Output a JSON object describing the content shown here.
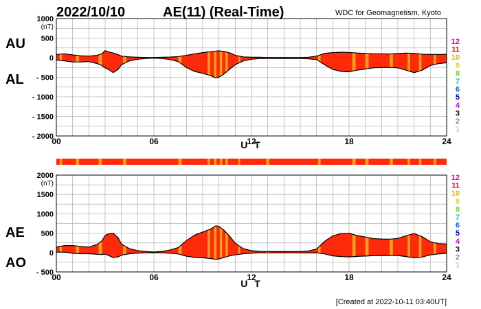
{
  "header": {
    "date": "2022/10/10",
    "title": "AE(11) (Real-Time)",
    "source": "WDC for Geomagnetism, Kyoto"
  },
  "footer": {
    "created": "[Created at 2022-10-11 03:40UT]"
  },
  "side_labels": {
    "top_upper": "AU",
    "top_lower": "AL",
    "bottom_upper": "AE",
    "bottom_lower": "AO"
  },
  "station_legend": {
    "labels": [
      "12",
      "11",
      "10",
      "9",
      "8",
      "7",
      "6",
      "5",
      "4",
      "3",
      "2",
      "1"
    ],
    "colors": [
      "#ff00aa",
      "#ff0000",
      "#ffaa00",
      "#dddd00",
      "#66dd00",
      "#00cccc",
      "#0055ff",
      "#0000cc",
      "#cc00cc",
      "#000000",
      "#888888",
      "#cccccc"
    ]
  },
  "colors": {
    "fill_main": "#ff2a0a",
    "fill_alt": "#ff9f1a",
    "outline": "#000000",
    "grid": "#b4b4b4"
  },
  "chart_data": [
    {
      "type": "area",
      "name": "AU / AL",
      "ylabel": "(nT)",
      "xlabel": "U T",
      "ylim": [
        -2000,
        1000
      ],
      "yticks": [
        1000,
        500,
        0,
        -500,
        -1000,
        -1500,
        -2000
      ],
      "ytick_labels": [
        "1000",
        "500",
        "0",
        "- 500",
        "- 1000",
        "- 1500",
        "- 2000"
      ],
      "xlim": [
        0,
        24
      ],
      "xticks": [
        0,
        6,
        12,
        18,
        24
      ],
      "xtick_labels": [
        "00",
        "06",
        "12",
        "18",
        "24"
      ],
      "x": [
        0,
        0.5,
        1,
        1.5,
        2,
        2.5,
        2.8,
        3,
        3.2,
        3.5,
        3.8,
        4,
        4.5,
        5,
        5.5,
        6,
        6.5,
        7,
        7.5,
        8,
        8.5,
        9,
        9.5,
        9.8,
        10,
        10.3,
        10.7,
        11,
        11.5,
        12,
        12.5,
        13,
        13.5,
        14,
        14.5,
        15,
        15.5,
        16,
        16.5,
        17,
        17.5,
        18,
        18.5,
        19,
        19.5,
        20,
        20.5,
        21,
        21.5,
        22,
        22.5,
        23,
        23.5,
        24
      ],
      "series": [
        {
          "name": "AU",
          "values": [
            80,
            100,
            70,
            50,
            40,
            60,
            100,
            180,
            150,
            120,
            80,
            40,
            20,
            10,
            5,
            5,
            10,
            15,
            30,
            60,
            100,
            130,
            150,
            170,
            175,
            160,
            120,
            60,
            20,
            10,
            10,
            5,
            5,
            5,
            5,
            5,
            10,
            40,
            110,
            130,
            140,
            135,
            120,
            110,
            100,
            100,
            95,
            105,
            115,
            110,
            90,
            80,
            80,
            90
          ]
        },
        {
          "name": "AL",
          "values": [
            -60,
            -80,
            -110,
            -110,
            -100,
            -150,
            -200,
            -260,
            -300,
            -380,
            -300,
            -180,
            -80,
            -40,
            -20,
            -10,
            -20,
            -50,
            -100,
            -250,
            -350,
            -400,
            -460,
            -520,
            -500,
            -420,
            -280,
            -180,
            -80,
            -40,
            -20,
            -20,
            -20,
            -20,
            -20,
            -20,
            -30,
            -50,
            -180,
            -300,
            -350,
            -360,
            -320,
            -290,
            -260,
            -250,
            -250,
            -260,
            -320,
            -380,
            -320,
            -200,
            -150,
            -130
          ]
        }
      ]
    },
    {
      "type": "area",
      "name": "AE / AO",
      "ylabel": "(nT)",
      "xlabel": "U T",
      "ylim": [
        -500,
        2000
      ],
      "yticks": [
        2000,
        1500,
        1000,
        500,
        0,
        -500
      ],
      "ytick_labels": [
        "2000",
        "1500",
        "1000",
        "500",
        "0",
        "- 500"
      ],
      "xlim": [
        0,
        24
      ],
      "xticks": [
        0,
        6,
        12,
        18,
        24
      ],
      "xtick_labels": [
        "00",
        "06",
        "12",
        "18",
        "24"
      ],
      "x": [
        0,
        0.5,
        1,
        1.5,
        2,
        2.5,
        2.8,
        3,
        3.2,
        3.5,
        3.8,
        4,
        4.5,
        5,
        5.5,
        6,
        6.5,
        7,
        7.5,
        8,
        8.5,
        9,
        9.5,
        9.8,
        10,
        10.3,
        10.7,
        11,
        11.5,
        12,
        12.5,
        13,
        13.5,
        14,
        14.5,
        15,
        15.5,
        16,
        16.5,
        17,
        17.5,
        18,
        18.5,
        19,
        19.5,
        20,
        20.5,
        21,
        21.5,
        22,
        22.5,
        23,
        23.5,
        24
      ],
      "series": [
        {
          "name": "AE",
          "values": [
            140,
            180,
            180,
            160,
            140,
            210,
            300,
            440,
            480,
            500,
            380,
            220,
            100,
            50,
            25,
            15,
            30,
            65,
            130,
            310,
            450,
            530,
            610,
            690,
            675,
            580,
            400,
            240,
            100,
            50,
            30,
            25,
            25,
            25,
            25,
            25,
            40,
            90,
            290,
            430,
            490,
            495,
            440,
            400,
            360,
            350,
            345,
            365,
            435,
            490,
            410,
            280,
            230,
            220
          ]
        },
        {
          "name": "AO",
          "values": [
            10,
            10,
            -20,
            -30,
            -30,
            -45,
            -50,
            -40,
            -75,
            -130,
            -110,
            -70,
            -30,
            -15,
            -8,
            -3,
            -5,
            -18,
            -35,
            -95,
            -125,
            -135,
            -155,
            -175,
            -165,
            -130,
            -80,
            -60,
            -30,
            -15,
            -5,
            -8,
            -8,
            -8,
            -8,
            -8,
            -10,
            -5,
            -35,
            -85,
            -105,
            -112,
            -100,
            -90,
            -80,
            -75,
            -78,
            -78,
            -103,
            -135,
            -115,
            -60,
            -35,
            -20
          ]
        }
      ]
    }
  ],
  "station_strip": {
    "name": "contributing-station-count-strip",
    "segments_alt_color": [
      [
        0.2,
        0.35
      ],
      [
        1.2,
        1.4
      ],
      [
        2.6,
        2.8
      ],
      [
        4.1,
        4.3
      ],
      [
        7.5,
        7.7
      ],
      [
        9.3,
        9.45
      ],
      [
        9.7,
        9.85
      ],
      [
        10.05,
        10.2
      ],
      [
        10.4,
        10.55
      ],
      [
        11.2,
        11.3
      ],
      [
        12.9,
        13.1
      ],
      [
        16.1,
        16.25
      ],
      [
        18.2,
        18.4
      ],
      [
        19.0,
        19.2
      ],
      [
        20.5,
        20.7
      ],
      [
        21.6,
        21.75
      ],
      [
        22.3,
        22.45
      ],
      [
        23.2,
        23.35
      ]
    ]
  }
}
